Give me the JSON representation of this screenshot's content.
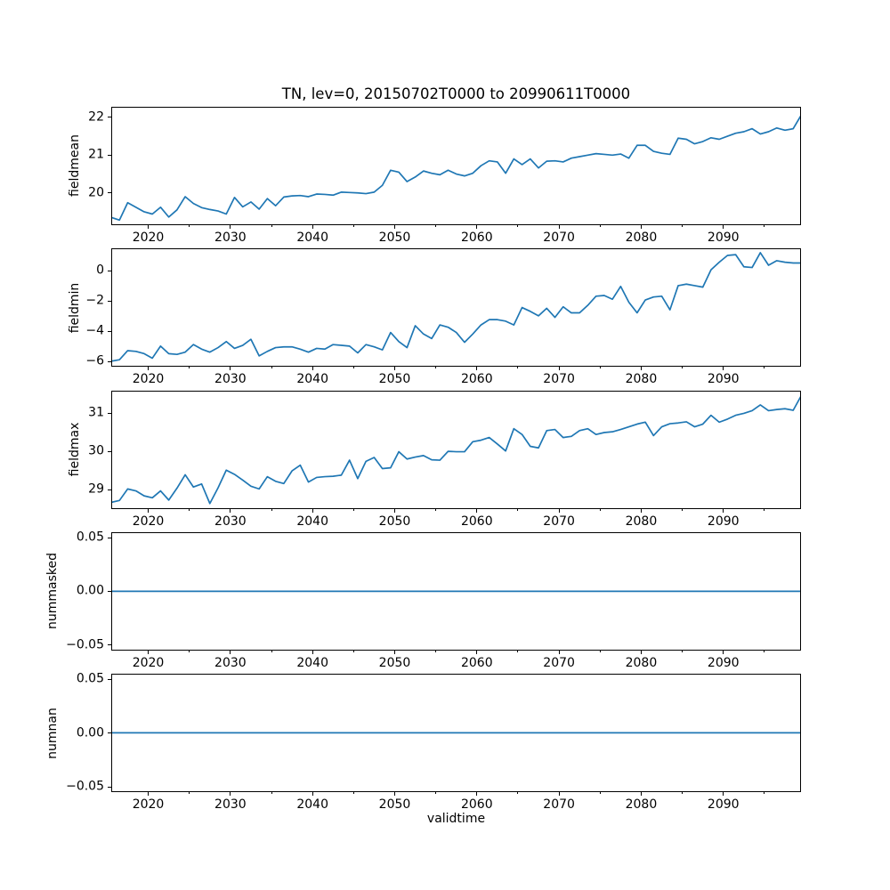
{
  "title": "TN, lev=0, 20150702T0000 to 20990611T0000",
  "xlabel": "validtime",
  "line_color": "#1f77b4",
  "background_color": "#ffffff",
  "text_color": "#000000",
  "x_axis": {
    "xlim": [
      2015.5,
      2099.45
    ],
    "major_tick_years": [
      2020,
      2030,
      2040,
      2050,
      2060,
      2070,
      2080,
      2090
    ],
    "major_tick_labels": [
      "2020",
      "2030",
      "2040",
      "2050",
      "2060",
      "2070",
      "2080",
      "2090"
    ],
    "minor_tick_years": [
      2025,
      2035,
      2045,
      2055,
      2065,
      2075,
      2085,
      2095
    ],
    "x_years": [
      2015,
      2016,
      2017,
      2018,
      2019,
      2020,
      2021,
      2022,
      2023,
      2024,
      2025,
      2026,
      2027,
      2028,
      2029,
      2030,
      2031,
      2032,
      2033,
      2034,
      2035,
      2036,
      2037,
      2038,
      2039,
      2040,
      2041,
      2042,
      2043,
      2044,
      2045,
      2046,
      2047,
      2048,
      2049,
      2050,
      2051,
      2052,
      2053,
      2054,
      2055,
      2056,
      2057,
      2058,
      2059,
      2060,
      2061,
      2062,
      2063,
      2064,
      2065,
      2066,
      2067,
      2068,
      2069,
      2070,
      2071,
      2072,
      2073,
      2074,
      2075,
      2076,
      2077,
      2078,
      2079,
      2080,
      2081,
      2082,
      2083,
      2084,
      2085,
      2086,
      2087,
      2088,
      2089,
      2090,
      2091,
      2092,
      2093,
      2094,
      2095,
      2096,
      2097,
      2098,
      2099
    ]
  },
  "chart_data": [
    {
      "type": "line",
      "name": "fieldmean",
      "ylabel": "fieldmean",
      "ylim": [
        19.15,
        22.28
      ],
      "ytick_values": [
        20,
        21,
        22
      ],
      "ytick_labels": [
        "20",
        "21",
        "22"
      ],
      "values": [
        19.35,
        19.28,
        19.74,
        19.62,
        19.5,
        19.44,
        19.62,
        19.36,
        19.55,
        19.9,
        19.72,
        19.61,
        19.56,
        19.52,
        19.44,
        19.88,
        19.63,
        19.76,
        19.57,
        19.85,
        19.66,
        19.89,
        19.92,
        19.93,
        19.9,
        19.97,
        19.96,
        19.94,
        20.02,
        20.01,
        20.0,
        19.98,
        20.02,
        20.2,
        20.6,
        20.55,
        20.3,
        20.42,
        20.58,
        20.52,
        20.48,
        20.6,
        20.5,
        20.45,
        20.52,
        20.72,
        20.85,
        20.82,
        20.52,
        20.9,
        20.75,
        20.9,
        20.66,
        20.84,
        20.85,
        20.82,
        20.92,
        20.96,
        21.0,
        21.04,
        21.02,
        21.0,
        21.03,
        20.92,
        21.26,
        21.26,
        21.1,
        21.05,
        21.02,
        21.45,
        21.42,
        21.3,
        21.36,
        21.46,
        21.42,
        21.5,
        21.58,
        21.62,
        21.7,
        21.56,
        21.62,
        21.72,
        21.66,
        21.7,
        22.05
      ]
    },
    {
      "type": "line",
      "name": "fieldmin",
      "ylabel": "fieldmin",
      "ylim": [
        -6.35,
        1.47
      ],
      "ytick_values": [
        -6,
        -4,
        -2,
        0
      ],
      "ytick_labels": [
        "−6",
        "−4",
        "−2",
        "0"
      ],
      "values": [
        -6.0,
        -5.9,
        -5.3,
        -5.35,
        -5.5,
        -5.8,
        -5.0,
        -5.5,
        -5.55,
        -5.4,
        -4.9,
        -5.2,
        -5.4,
        -5.1,
        -4.7,
        -5.15,
        -4.95,
        -4.55,
        -5.65,
        -5.35,
        -5.1,
        -5.05,
        -5.05,
        -5.2,
        -5.4,
        -5.15,
        -5.2,
        -4.9,
        -4.95,
        -5.0,
        -5.45,
        -4.9,
        -5.05,
        -5.25,
        -4.1,
        -4.7,
        -5.1,
        -3.65,
        -4.2,
        -4.5,
        -3.6,
        -3.75,
        -4.1,
        -4.75,
        -4.2,
        -3.6,
        -3.25,
        -3.25,
        -3.35,
        -3.6,
        -2.45,
        -2.7,
        -3.0,
        -2.5,
        -3.1,
        -2.4,
        -2.8,
        -2.8,
        -2.3,
        -1.7,
        -1.65,
        -1.9,
        -1.05,
        -2.1,
        -2.8,
        -1.95,
        -1.75,
        -1.7,
        -2.6,
        -1.0,
        -0.9,
        -1.0,
        -1.1,
        0.05,
        0.55,
        1.0,
        1.05,
        0.25,
        0.2,
        1.18,
        0.35,
        0.65,
        0.55,
        0.5,
        0.5
      ]
    },
    {
      "type": "line",
      "name": "fieldmax",
      "ylabel": "fieldmax",
      "ylim": [
        28.51,
        31.59
      ],
      "ytick_values": [
        29,
        30,
        31
      ],
      "ytick_labels": [
        "29",
        "30",
        "31"
      ],
      "values": [
        28.68,
        28.73,
        29.03,
        28.98,
        28.85,
        28.8,
        28.98,
        28.74,
        29.05,
        29.4,
        29.08,
        29.16,
        28.65,
        29.06,
        29.52,
        29.41,
        29.26,
        29.1,
        29.03,
        29.35,
        29.23,
        29.17,
        29.5,
        29.65,
        29.21,
        29.33,
        29.35,
        29.36,
        29.39,
        29.78,
        29.3,
        29.75,
        29.85,
        29.56,
        29.58,
        30.0,
        29.81,
        29.86,
        29.9,
        29.79,
        29.78,
        30.01,
        30.0,
        30.0,
        30.26,
        30.3,
        30.37,
        30.2,
        30.02,
        30.6,
        30.45,
        30.14,
        30.1,
        30.55,
        30.58,
        30.37,
        30.4,
        30.55,
        30.6,
        30.45,
        30.5,
        30.52,
        30.58,
        30.65,
        30.72,
        30.77,
        30.42,
        30.65,
        30.73,
        30.75,
        30.78,
        30.65,
        30.72,
        30.95,
        30.77,
        30.85,
        30.95,
        31.0,
        31.07,
        31.22,
        31.07,
        31.1,
        31.12,
        31.08,
        31.45
      ]
    },
    {
      "type": "line",
      "name": "nummasked",
      "ylabel": "nummasked",
      "ylim": [
        -0.055,
        0.055
      ],
      "ytick_values": [
        -0.05,
        0,
        0.05
      ],
      "ytick_labels": [
        "−0.05",
        "0.00",
        "0.05"
      ],
      "constant": 0.0
    },
    {
      "type": "line",
      "name": "numnan",
      "ylabel": "numnan",
      "ylim": [
        -0.055,
        0.055
      ],
      "ytick_values": [
        -0.05,
        0,
        0.05
      ],
      "ytick_labels": [
        "−0.05",
        "0.00",
        "0.05"
      ],
      "constant": 0.0
    }
  ]
}
